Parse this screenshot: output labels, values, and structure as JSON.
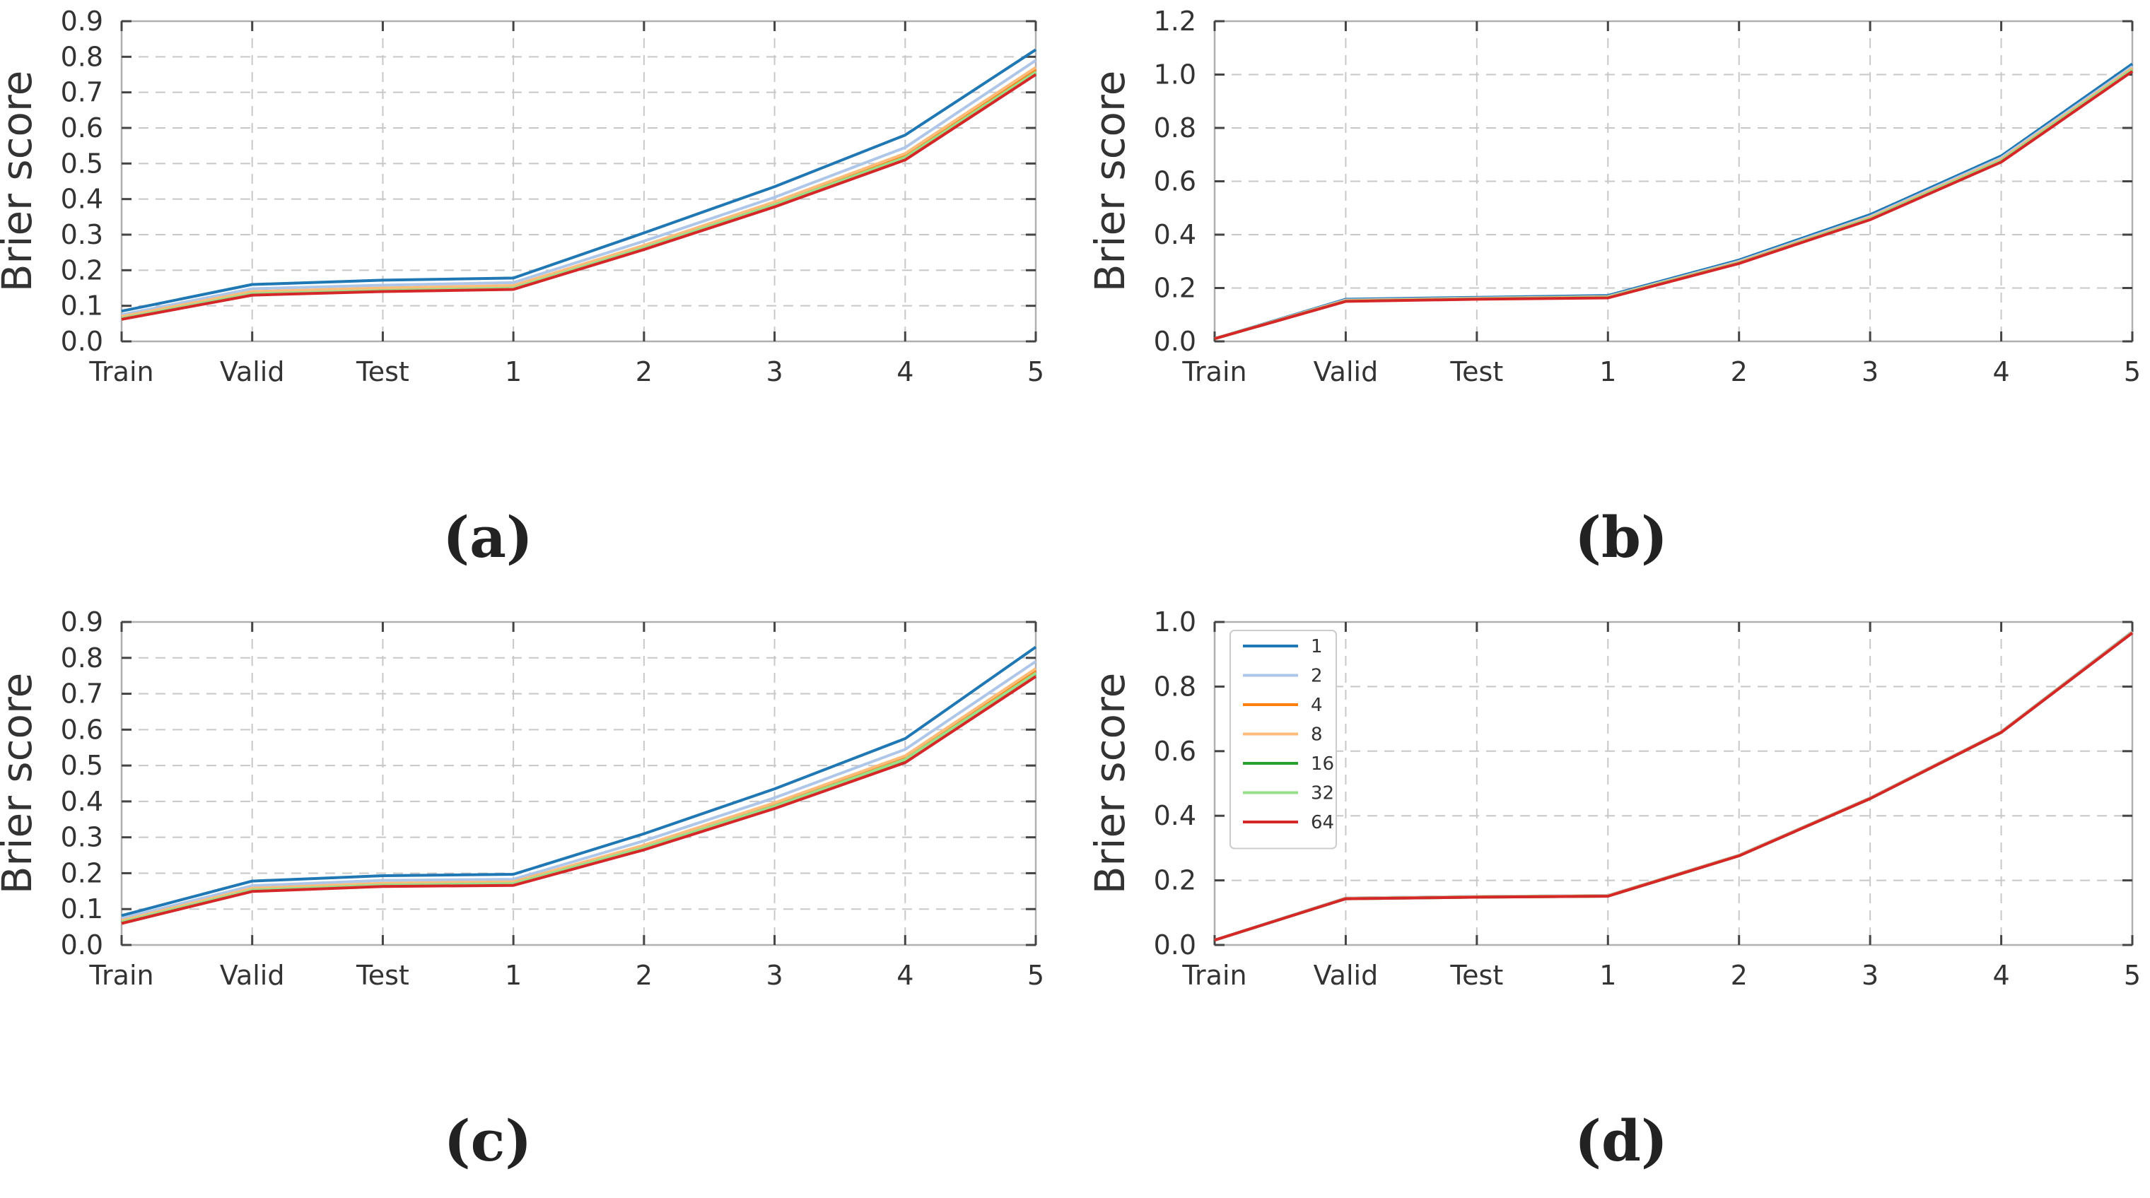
{
  "chart_data": [
    {
      "id": "a",
      "type": "line",
      "caption": "(a)",
      "ylabel": "Brier score",
      "categories": [
        "Train",
        "Valid",
        "Test",
        "1",
        "2",
        "3",
        "4",
        "5"
      ],
      "ylim": [
        0,
        0.9
      ],
      "yticks": [
        "0.0",
        "0.1",
        "0.2",
        "0.3",
        "0.4",
        "0.5",
        "0.6",
        "0.7",
        "0.8",
        "0.9"
      ],
      "grid": true,
      "legend": false,
      "series": [
        {
          "name": "1",
          "color": "#1f77b4",
          "values": [
            0.085,
            0.16,
            0.172,
            0.178,
            0.305,
            0.435,
            0.58,
            0.82
          ]
        },
        {
          "name": "2",
          "color": "#aec7e8",
          "values": [
            0.075,
            0.148,
            0.158,
            0.165,
            0.282,
            0.405,
            0.545,
            0.79
          ]
        },
        {
          "name": "4",
          "color": "#ff7f0e",
          "values": [
            0.068,
            0.138,
            0.148,
            0.155,
            0.268,
            0.39,
            0.525,
            0.765
          ]
        },
        {
          "name": "8",
          "color": "#ffbb78",
          "values": [
            0.07,
            0.14,
            0.15,
            0.157,
            0.27,
            0.392,
            0.528,
            0.77
          ]
        },
        {
          "name": "16",
          "color": "#2ca02c",
          "values": [
            0.064,
            0.133,
            0.142,
            0.149,
            0.262,
            0.383,
            0.515,
            0.755
          ]
        },
        {
          "name": "32",
          "color": "#98df8a",
          "values": [
            0.065,
            0.134,
            0.143,
            0.15,
            0.263,
            0.384,
            0.517,
            0.757
          ]
        },
        {
          "name": "64",
          "color": "#d62728",
          "values": [
            0.062,
            0.13,
            0.14,
            0.146,
            0.258,
            0.378,
            0.51,
            0.75
          ]
        }
      ]
    },
    {
      "id": "b",
      "type": "line",
      "caption": "(b)",
      "ylabel": "Brier score",
      "categories": [
        "Train",
        "Valid",
        "Test",
        "1",
        "2",
        "3",
        "4",
        "5"
      ],
      "ylim": [
        0,
        1.2
      ],
      "yticks": [
        "0.0",
        "0.2",
        "0.4",
        "0.6",
        "0.8",
        "1.0",
        "1.2"
      ],
      "grid": true,
      "legend": false,
      "series": [
        {
          "name": "1",
          "color": "#1f77b4",
          "values": [
            0.01,
            0.158,
            0.165,
            0.172,
            0.305,
            0.475,
            0.695,
            1.04
          ]
        },
        {
          "name": "2",
          "color": "#aec7e8",
          "values": [
            0.01,
            0.155,
            0.162,
            0.168,
            0.3,
            0.468,
            0.688,
            1.03
          ]
        },
        {
          "name": "4",
          "color": "#ff7f0e",
          "values": [
            0.01,
            0.152,
            0.16,
            0.166,
            0.296,
            0.462,
            0.68,
            1.022
          ]
        },
        {
          "name": "8",
          "color": "#ffbb78",
          "values": [
            0.01,
            0.153,
            0.161,
            0.167,
            0.297,
            0.464,
            0.682,
            1.024
          ]
        },
        {
          "name": "16",
          "color": "#2ca02c",
          "values": [
            0.01,
            0.151,
            0.159,
            0.165,
            0.294,
            0.46,
            0.677,
            1.018
          ]
        },
        {
          "name": "32",
          "color": "#98df8a",
          "values": [
            0.01,
            0.151,
            0.159,
            0.165,
            0.294,
            0.46,
            0.677,
            1.018
          ]
        },
        {
          "name": "64",
          "color": "#d62728",
          "values": [
            0.01,
            0.15,
            0.158,
            0.163,
            0.292,
            0.456,
            0.672,
            1.012
          ]
        }
      ]
    },
    {
      "id": "c",
      "type": "line",
      "caption": "(c)",
      "ylabel": "Brier score",
      "categories": [
        "Train",
        "Valid",
        "Test",
        "1",
        "2",
        "3",
        "4",
        "5"
      ],
      "ylim": [
        0,
        0.9
      ],
      "yticks": [
        "0.0",
        "0.1",
        "0.2",
        "0.3",
        "0.4",
        "0.5",
        "0.6",
        "0.7",
        "0.8",
        "0.9"
      ],
      "grid": true,
      "legend": false,
      "series": [
        {
          "name": "1",
          "color": "#1f77b4",
          "values": [
            0.082,
            0.178,
            0.193,
            0.197,
            0.31,
            0.435,
            0.575,
            0.83
          ]
        },
        {
          "name": "2",
          "color": "#aec7e8",
          "values": [
            0.074,
            0.165,
            0.18,
            0.183,
            0.29,
            0.41,
            0.545,
            0.79
          ]
        },
        {
          "name": "4",
          "color": "#ff7f0e",
          "values": [
            0.066,
            0.156,
            0.17,
            0.174,
            0.275,
            0.392,
            0.522,
            0.765
          ]
        },
        {
          "name": "8",
          "color": "#ffbb78",
          "values": [
            0.068,
            0.158,
            0.172,
            0.176,
            0.278,
            0.396,
            0.527,
            0.77
          ]
        },
        {
          "name": "16",
          "color": "#2ca02c",
          "values": [
            0.063,
            0.152,
            0.166,
            0.17,
            0.27,
            0.386,
            0.515,
            0.755
          ]
        },
        {
          "name": "32",
          "color": "#98df8a",
          "values": [
            0.064,
            0.153,
            0.167,
            0.171,
            0.271,
            0.387,
            0.517,
            0.757
          ]
        },
        {
          "name": "64",
          "color": "#d62728",
          "values": [
            0.06,
            0.149,
            0.163,
            0.166,
            0.265,
            0.38,
            0.508,
            0.748
          ]
        }
      ]
    },
    {
      "id": "d",
      "type": "line",
      "caption": "(d)",
      "ylabel": "Brier score",
      "categories": [
        "Train",
        "Valid",
        "Test",
        "1",
        "2",
        "3",
        "4",
        "5"
      ],
      "ylim": [
        0,
        1.0
      ],
      "yticks": [
        "0.0",
        "0.2",
        "0.4",
        "0.6",
        "0.8",
        "1.0"
      ],
      "grid": true,
      "legend": true,
      "legend_position": "top-left",
      "series": [
        {
          "name": "1",
          "color": "#1f77b4",
          "values": [
            0.015,
            0.145,
            0.15,
            0.153,
            0.278,
            0.455,
            0.66,
            0.97
          ]
        },
        {
          "name": "2",
          "color": "#aec7e8",
          "values": [
            0.015,
            0.145,
            0.15,
            0.153,
            0.278,
            0.455,
            0.66,
            0.97
          ]
        },
        {
          "name": "4",
          "color": "#ff7f0e",
          "values": [
            0.015,
            0.144,
            0.149,
            0.152,
            0.277,
            0.454,
            0.659,
            0.968
          ]
        },
        {
          "name": "8",
          "color": "#ffbb78",
          "values": [
            0.015,
            0.144,
            0.149,
            0.152,
            0.277,
            0.454,
            0.659,
            0.968
          ]
        },
        {
          "name": "16",
          "color": "#2ca02c",
          "values": [
            0.015,
            0.143,
            0.148,
            0.151,
            0.276,
            0.453,
            0.658,
            0.967
          ]
        },
        {
          "name": "32",
          "color": "#98df8a",
          "values": [
            0.015,
            0.143,
            0.148,
            0.151,
            0.276,
            0.453,
            0.658,
            0.967
          ]
        },
        {
          "name": "64",
          "color": "#d62728",
          "values": [
            0.015,
            0.143,
            0.148,
            0.151,
            0.276,
            0.453,
            0.658,
            0.966
          ]
        }
      ]
    }
  ]
}
